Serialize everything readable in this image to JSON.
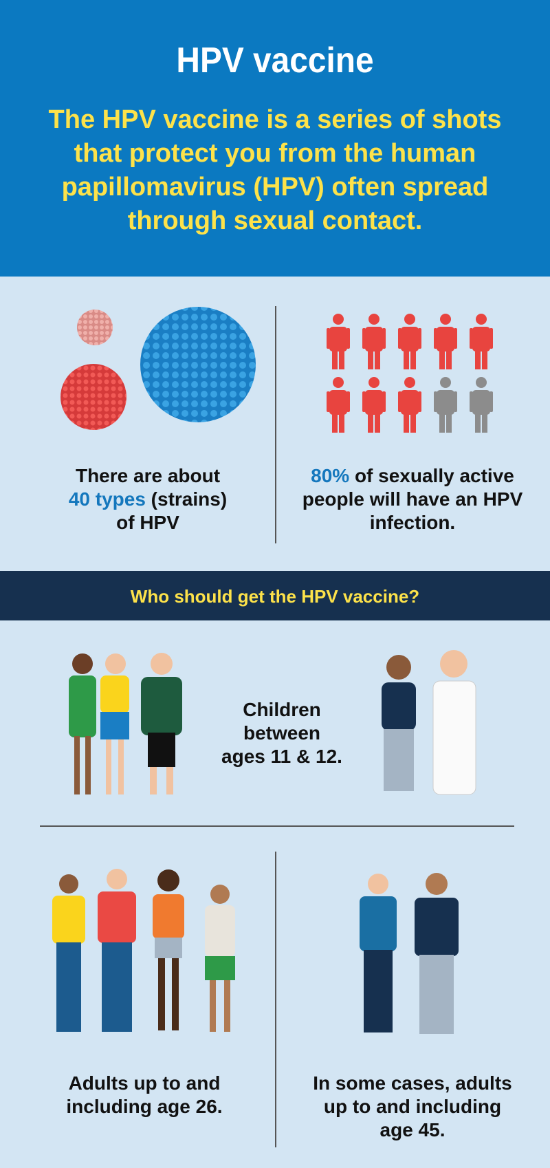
{
  "header": {
    "title": "HPV vaccine",
    "intro": "The HPV vaccine is a series of shots that protect you from the human papillomavirus (HPV) often spread through sexual contact."
  },
  "stats": {
    "types": {
      "line1": "There are about",
      "highlight": "40 types",
      "rest": " (strains)",
      "line3": "of HPV"
    },
    "infection": {
      "highlight": "80%",
      "rest": " of sexually active people will have an HPV infection.",
      "percent": 80,
      "icons_total": 10,
      "icons_highlighted": 8
    }
  },
  "colors": {
    "header_bg": "#0b79c1",
    "intro_text": "#fde24a",
    "highlight": "#1477bd",
    "band_bg": "#16304f",
    "body_bg": "#d3e5f3",
    "person_red": "#e8443f",
    "person_gray": "#8c8c8c"
  },
  "who": {
    "heading": "Who should get the HPV vaccine?",
    "children": "Children between ages 11 & 12.",
    "adults": "Adults up to and including age 26.",
    "some_cases": "In some cases, adults up to and including age 45."
  }
}
